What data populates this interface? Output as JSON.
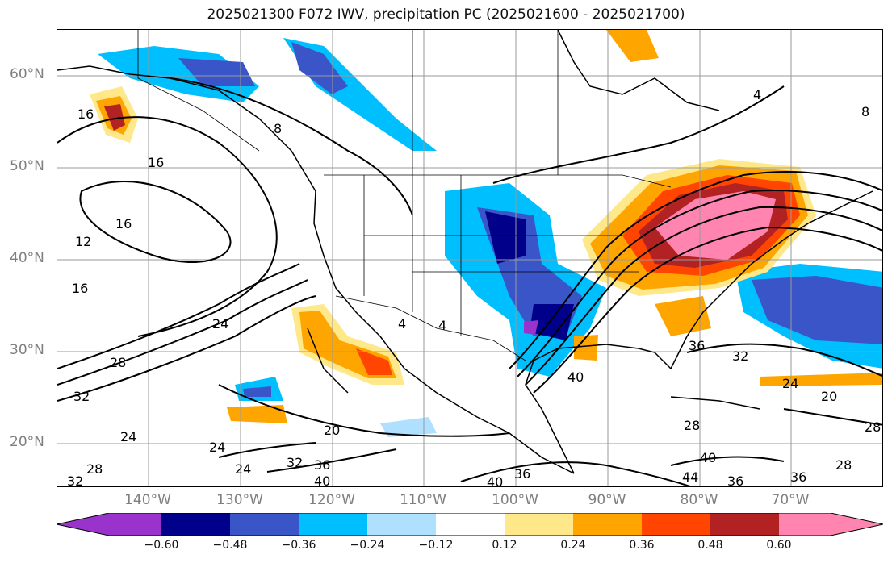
{
  "title": "2025021300 F072 IWV, precipitation PC (2025021600 - 2025021700)",
  "lat_labels": [
    "60°N",
    "50°N",
    "40°N",
    "30°N",
    "20°N"
  ],
  "lon_labels": [
    "140°W",
    "130°W",
    "120°W",
    "110°W",
    "100°W",
    "90°W",
    "80°W",
    "70°W"
  ],
  "colorbar": {
    "ticks": [
      "−0.60",
      "−0.48",
      "−0.36",
      "−0.24",
      "−0.12",
      "0.12",
      "0.24",
      "0.36",
      "0.48",
      "0.60"
    ],
    "colors": [
      "#9933cc",
      "#00008b",
      "#3a55c8",
      "#00bfff",
      "#b0e0ff",
      "#ffffff",
      "#ffe88a",
      "#ffa500",
      "#ff4500",
      "#b22222",
      "#ff85b0"
    ]
  },
  "contour_labels": [
    {
      "text": "16"
    },
    {
      "text": "16"
    },
    {
      "text": "8"
    },
    {
      "text": "16"
    },
    {
      "text": "12"
    },
    {
      "text": "16"
    },
    {
      "text": "24"
    },
    {
      "text": "28"
    },
    {
      "text": "32"
    },
    {
      "text": "24"
    },
    {
      "text": "24"
    },
    {
      "text": "24"
    },
    {
      "text": "20"
    },
    {
      "text": "32"
    },
    {
      "text": "36"
    },
    {
      "text": "40"
    },
    {
      "text": "28"
    },
    {
      "text": "32"
    },
    {
      "text": "4"
    },
    {
      "text": "8"
    },
    {
      "text": "36"
    },
    {
      "text": "32"
    },
    {
      "text": "40"
    },
    {
      "text": "24"
    },
    {
      "text": "20"
    },
    {
      "text": "28"
    },
    {
      "text": "28"
    },
    {
      "text": "40"
    },
    {
      "text": "44"
    },
    {
      "text": "36"
    },
    {
      "text": "36"
    },
    {
      "text": "28"
    },
    {
      "text": "40"
    },
    {
      "text": "36"
    },
    {
      "text": "4"
    },
    {
      "text": "4"
    }
  ]
}
